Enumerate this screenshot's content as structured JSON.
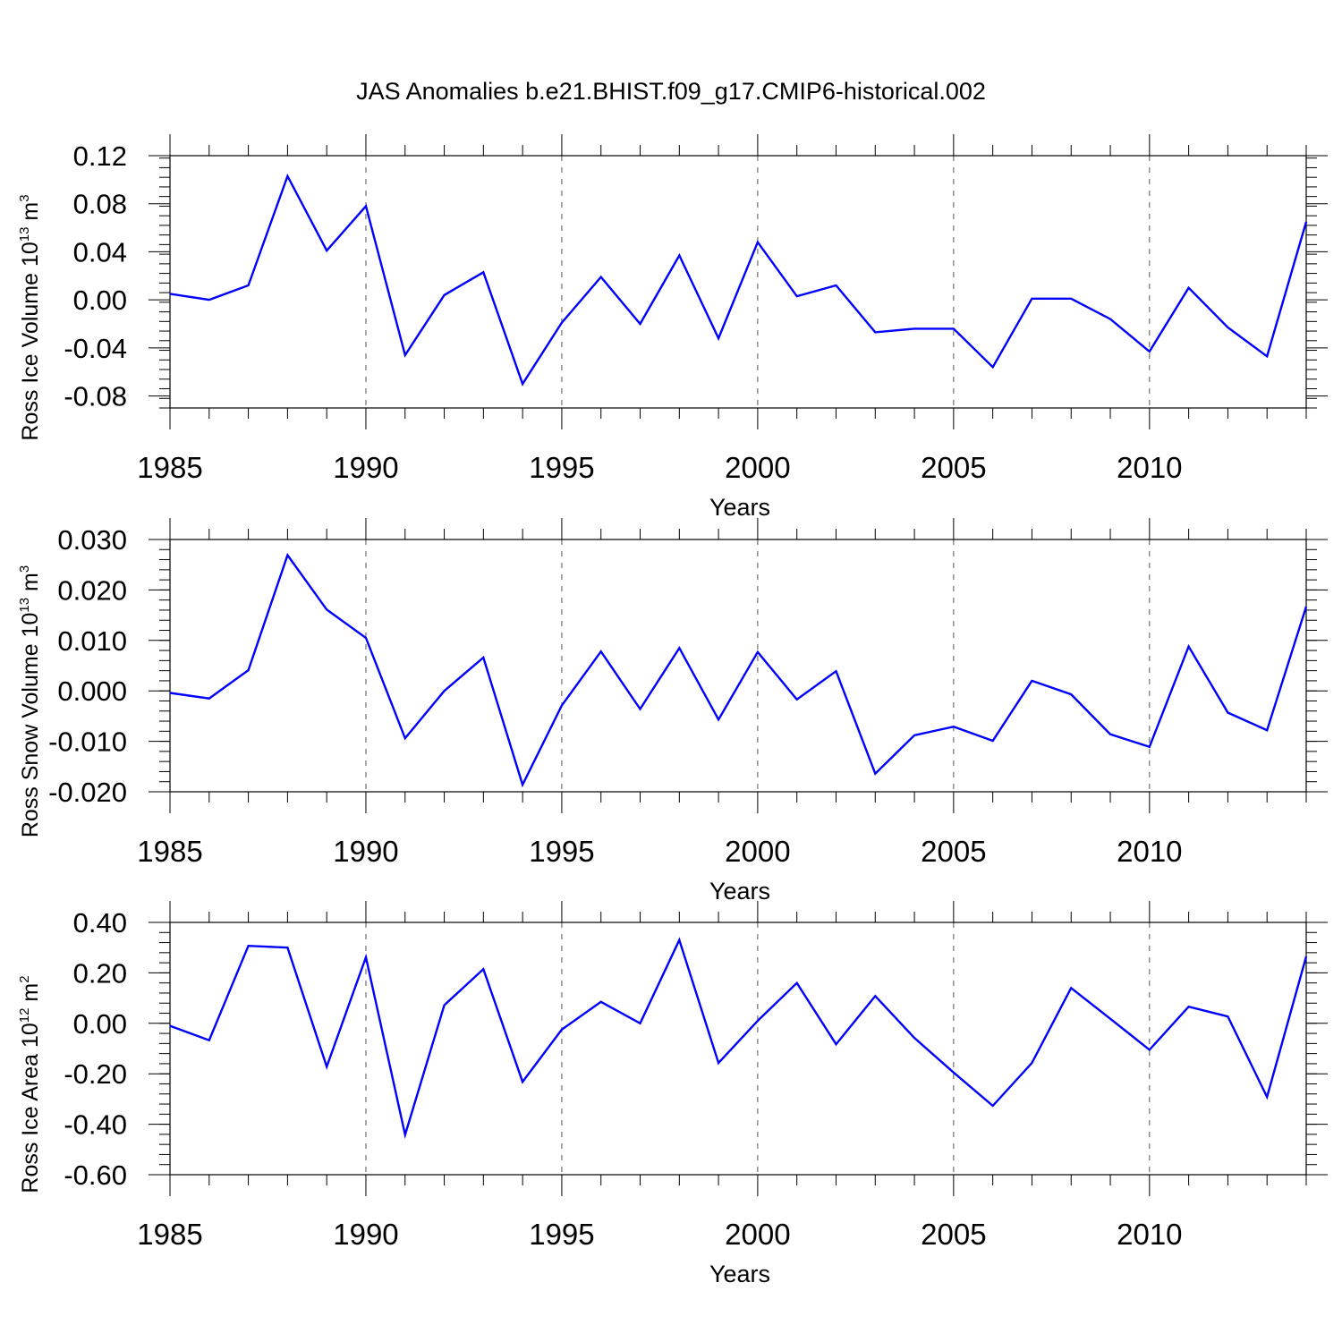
{
  "title": "JAS Anomalies b.e21.BHIST.f09_g17.CMIP6-historical.002",
  "colors": {
    "line": "#0000ff",
    "axis": "#000000",
    "grid": "#555555"
  },
  "chart_data": [
    {
      "type": "line",
      "ylabel": {
        "main": "Ross Ice Volume 10",
        "exp": "13",
        "unit": " m",
        "unit_exp": "3"
      },
      "xlabel": "Years",
      "xlim": [
        1985,
        2014
      ],
      "ylim": [
        -0.09,
        0.12
      ],
      "yticks": [
        -0.08,
        -0.04,
        0.0,
        0.04,
        0.08,
        0.12
      ],
      "ytick_labels": [
        "-0.08",
        "-0.04",
        "0.00",
        "0.04",
        "0.08",
        "0.12"
      ],
      "xticks": [
        1985,
        1990,
        1995,
        2000,
        2005,
        2010
      ],
      "grid": "vertical dashed at major x ticks",
      "x": [
        1985,
        1986,
        1987,
        1988,
        1989,
        1990,
        1991,
        1992,
        1993,
        1994,
        1995,
        1996,
        1997,
        1998,
        1999,
        2000,
        2001,
        2002,
        2003,
        2004,
        2005,
        2006,
        2007,
        2008,
        2009,
        2010,
        2011,
        2012,
        2013,
        2014
      ],
      "series": [
        {
          "values": [
            0.005,
            0.0,
            0.012,
            0.103,
            0.041,
            0.078,
            -0.046,
            0.004,
            0.023,
            -0.07,
            -0.019,
            0.019,
            -0.02,
            0.037,
            -0.032,
            0.048,
            0.003,
            0.012,
            -0.027,
            -0.024,
            -0.024,
            -0.056,
            0.001,
            0.001,
            -0.016,
            -0.043,
            0.01,
            -0.023,
            -0.047,
            0.065
          ]
        }
      ]
    },
    {
      "type": "line",
      "ylabel": {
        "main": "Ross Snow Volume 10",
        "exp": "13",
        "unit": " m",
        "unit_exp": "3"
      },
      "xlabel": "Years",
      "xlim": [
        1985,
        2014
      ],
      "ylim": [
        -0.02,
        0.03
      ],
      "yticks": [
        -0.02,
        -0.01,
        0.0,
        0.01,
        0.02,
        0.03
      ],
      "ytick_labels": [
        "-0.020",
        "-0.010",
        "0.000",
        "0.010",
        "0.020",
        "0.030"
      ],
      "xticks": [
        1985,
        1990,
        1995,
        2000,
        2005,
        2010
      ],
      "grid": "vertical dashed at major x ticks",
      "x": [
        1985,
        1986,
        1987,
        1988,
        1989,
        1990,
        1991,
        1992,
        1993,
        1994,
        1995,
        1996,
        1997,
        1998,
        1999,
        2000,
        2001,
        2002,
        2003,
        2004,
        2005,
        2006,
        2007,
        2008,
        2009,
        2010,
        2011,
        2012,
        2013,
        2014
      ],
      "series": [
        {
          "values": [
            -0.0004,
            -0.0015,
            0.0041,
            0.0269,
            0.0161,
            0.0105,
            -0.0094,
            0.0,
            0.0066,
            -0.0186,
            -0.0029,
            0.0078,
            -0.0036,
            0.0085,
            -0.0057,
            0.0077,
            -0.0017,
            0.0039,
            -0.0164,
            -0.0088,
            -0.0071,
            -0.0099,
            0.002,
            -0.0007,
            -0.0086,
            -0.0111,
            0.0088,
            -0.0043,
            -0.0078,
            0.0167
          ]
        }
      ]
    },
    {
      "type": "line",
      "ylabel": {
        "main": "Ross Ice Area 10",
        "exp": "12",
        "unit": " m",
        "unit_exp": "2"
      },
      "xlabel": "Years",
      "xlim": [
        1985,
        2014
      ],
      "ylim": [
        -0.6,
        0.4
      ],
      "yticks": [
        -0.6,
        -0.4,
        -0.2,
        0.0,
        0.2,
        0.4
      ],
      "ytick_labels": [
        "-0.60",
        "-0.40",
        "-0.20",
        "0.00",
        "0.20",
        "0.40"
      ],
      "xticks": [
        1985,
        1990,
        1995,
        2000,
        2005,
        2010
      ],
      "grid": "vertical dashed at major x ticks",
      "x": [
        1985,
        1986,
        1987,
        1988,
        1989,
        1990,
        1991,
        1992,
        1993,
        1994,
        1995,
        1996,
        1997,
        1998,
        1999,
        2000,
        2001,
        2002,
        2003,
        2004,
        2005,
        2006,
        2007,
        2008,
        2009,
        2010,
        2011,
        2012,
        2013,
        2014
      ],
      "series": [
        {
          "values": [
            -0.01,
            -0.067,
            0.307,
            0.3,
            -0.172,
            0.262,
            -0.442,
            0.072,
            0.215,
            -0.232,
            -0.025,
            0.085,
            0.0,
            0.33,
            -0.157,
            0.01,
            0.16,
            -0.083,
            0.108,
            -0.058,
            -0.195,
            -0.327,
            -0.157,
            0.14,
            0.018,
            -0.105,
            0.066,
            0.027,
            -0.292,
            0.265
          ]
        }
      ]
    }
  ]
}
